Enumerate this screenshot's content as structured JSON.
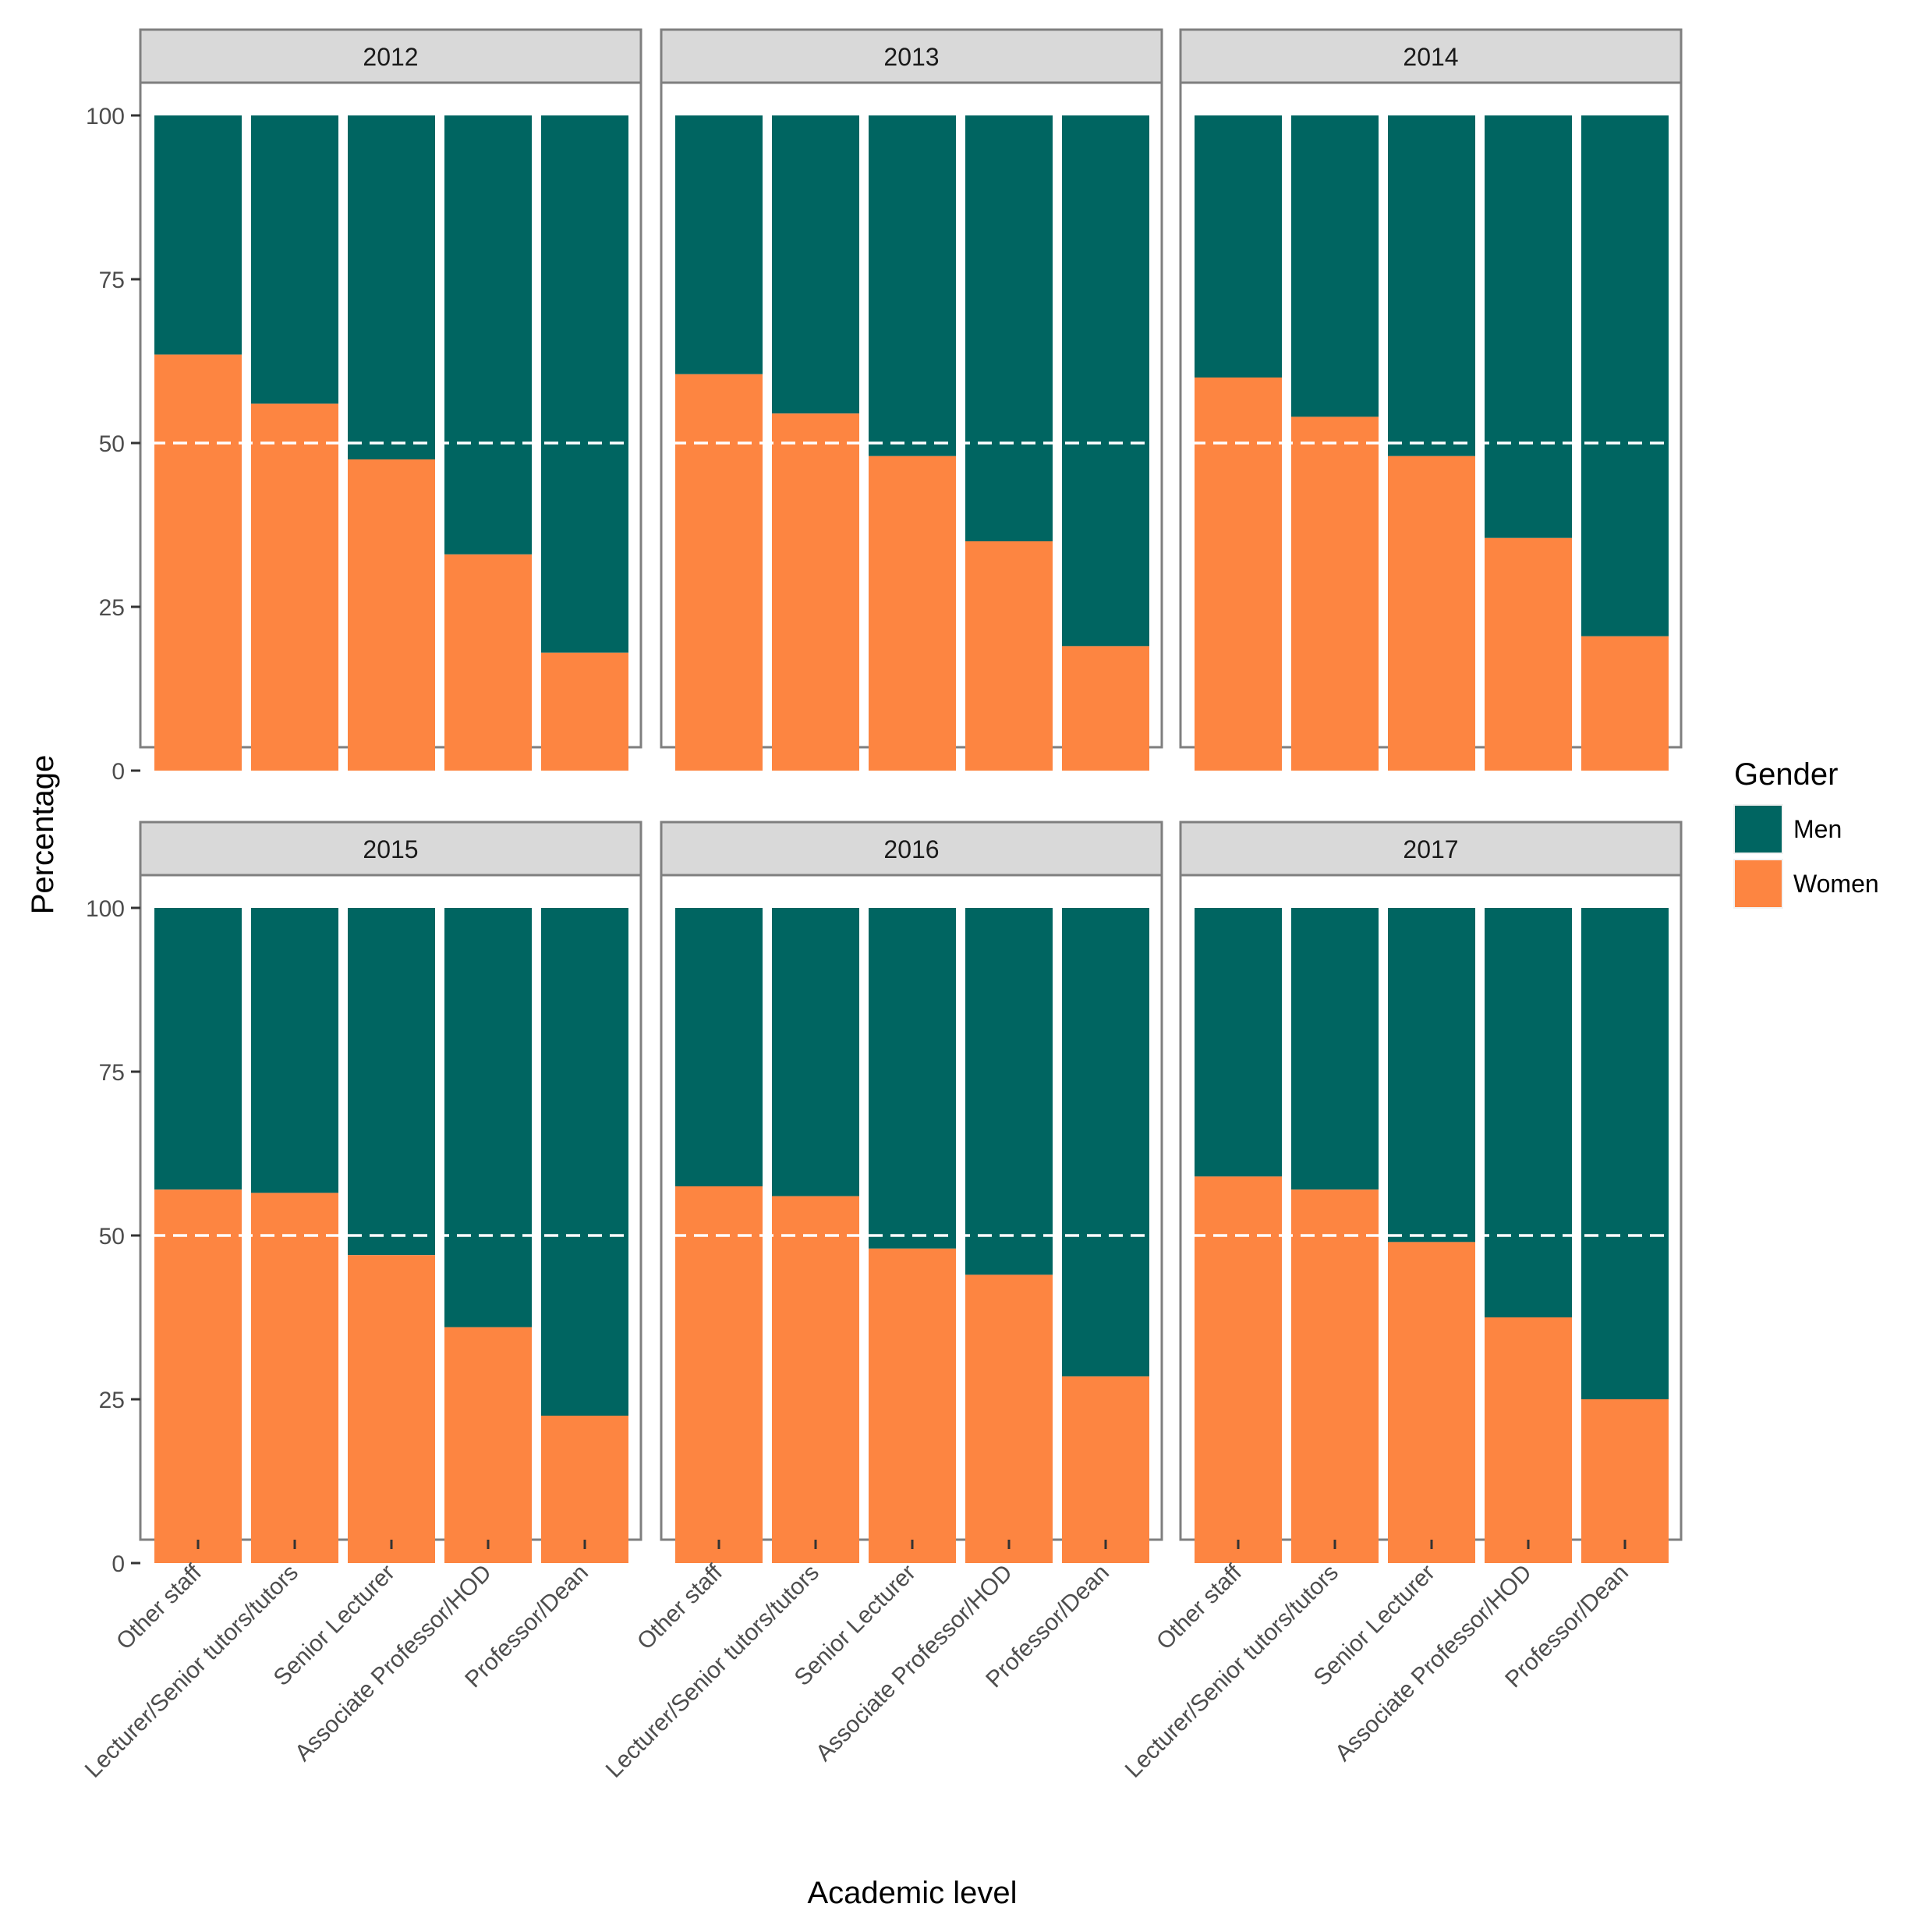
{
  "chart_data": {
    "type": "bar",
    "stacked": true,
    "facet_by": "year",
    "xlabel": "Academic level",
    "ylabel": "Percentage",
    "ylim": [
      0,
      100
    ],
    "yticks": [
      0,
      25,
      50,
      75,
      100
    ],
    "reference_line": 50,
    "categories": [
      "Other staff",
      "Lecturer/Senior tutors/tutors",
      "Senior Lecturer",
      "Associate Professor/HOD",
      "Professor/Dean"
    ],
    "legend": {
      "title": "Gender",
      "placement": "right",
      "entries": [
        {
          "name": "Men",
          "color": "#006561"
        },
        {
          "name": "Women",
          "color": "#fd8541"
        }
      ]
    },
    "colors": {
      "men": "#006561",
      "women": "#fd8541",
      "strip": "#d9d9d9",
      "panel_border": "#7f7f7f",
      "reference_line": "#ffffff"
    },
    "panels": [
      {
        "year": "2012",
        "series": [
          {
            "name": "Women",
            "values": [
              63.5,
              56,
              47.5,
              33,
              18
            ]
          },
          {
            "name": "Men",
            "values": [
              36.5,
              44,
              52.5,
              67,
              82
            ]
          }
        ]
      },
      {
        "year": "2013",
        "series": [
          {
            "name": "Women",
            "values": [
              60.5,
              54.5,
              48,
              35,
              19
            ]
          },
          {
            "name": "Men",
            "values": [
              39.5,
              45.5,
              52,
              65,
              81
            ]
          }
        ]
      },
      {
        "year": "2014",
        "series": [
          {
            "name": "Women",
            "values": [
              60,
              54,
              48,
              35.5,
              20.5
            ]
          },
          {
            "name": "Men",
            "values": [
              40,
              46,
              52,
              64.5,
              79.5
            ]
          }
        ]
      },
      {
        "year": "2015",
        "series": [
          {
            "name": "Women",
            "values": [
              57,
              56.5,
              47,
              36,
              22.5
            ]
          },
          {
            "name": "Men",
            "values": [
              43,
              43.5,
              53,
              64,
              77.5
            ]
          }
        ]
      },
      {
        "year": "2016",
        "series": [
          {
            "name": "Women",
            "values": [
              57.5,
              56,
              48,
              44,
              28.5
            ]
          },
          {
            "name": "Men",
            "values": [
              42.5,
              44,
              52,
              56,
              71.5
            ]
          }
        ]
      },
      {
        "year": "2017",
        "series": [
          {
            "name": "Women",
            "values": [
              59,
              57,
              49,
              37.5,
              25
            ]
          },
          {
            "name": "Men",
            "values": [
              41,
              43,
              51,
              62.5,
              75
            ]
          }
        ]
      }
    ]
  }
}
